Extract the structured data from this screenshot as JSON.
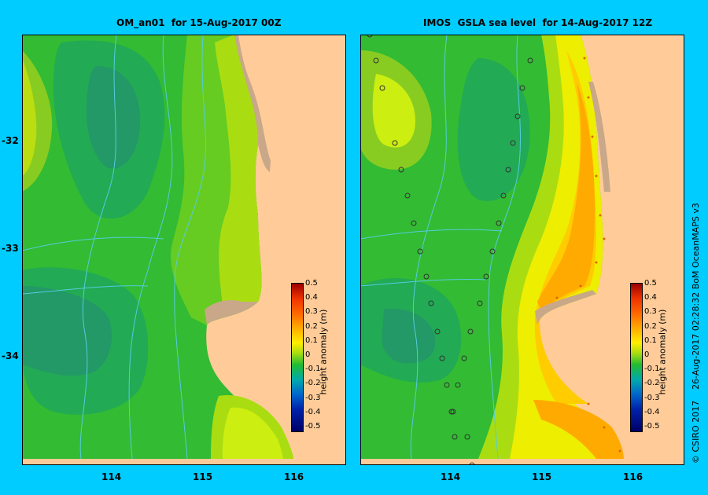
{
  "left_panel": {
    "title": "OM_an01  for 15-Aug-2017 00Z"
  },
  "right_panel": {
    "title": "IMOS  GSLA sea level  for 14-Aug-2017 12Z"
  },
  "lat_labels": [
    "-32",
    "-33",
    "-34"
  ],
  "lon_labels": [
    "114",
    "115",
    "116"
  ],
  "colorbar": {
    "label": "height anomaly (m)",
    "ticks": [
      "0.5",
      "0.4",
      "0.3",
      "0.2",
      "0.1",
      "0",
      "-0.1",
      "-0.2",
      "-0.3",
      "-0.4",
      "-0.5"
    ]
  },
  "credit": "© CSIRO 2017    26-Aug-2017 02:28:32 BoM OceanMAPS v3",
  "colors": {
    "background": "#00ccff",
    "land": "#ffcc99",
    "shelf": "#c8a888",
    "contour": "#55ccdd"
  }
}
